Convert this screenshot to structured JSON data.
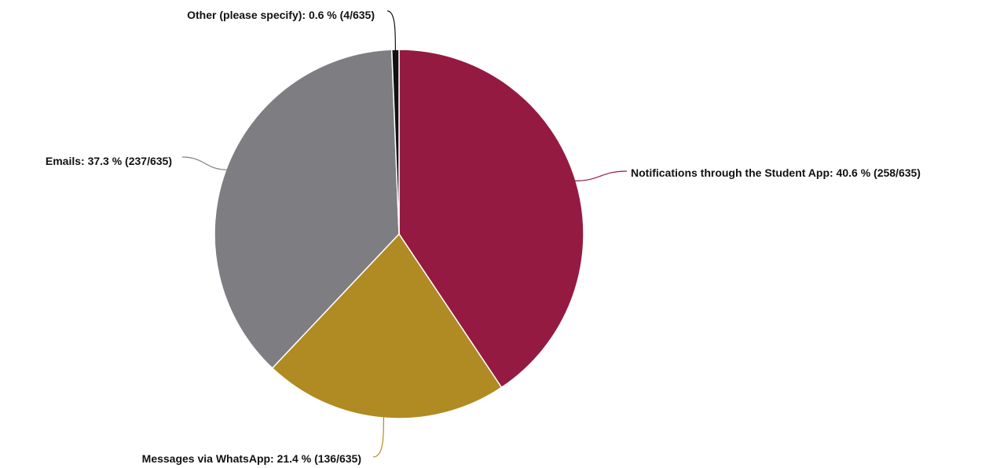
{
  "chart_data": {
    "type": "pie",
    "total": 635,
    "slices": [
      {
        "name": "Notifications through the Student App",
        "value": 258,
        "percent": 40.6,
        "label": "Notifications through the Student App: 40.6 % (258/635)",
        "color": "#941a41"
      },
      {
        "name": "Messages via WhatsApp",
        "value": 136,
        "percent": 21.4,
        "label": "Messages via WhatsApp: 21.4 % (136/635)",
        "color": "#b08a22"
      },
      {
        "name": "Emails",
        "value": 237,
        "percent": 37.3,
        "label": "Emails: 37.3 % (237/635)",
        "color": "#7e7d82"
      },
      {
        "name": "Other (please specify)",
        "value": 4,
        "percent": 0.6,
        "label": "Other (please specify): 0.6 % (4/635)",
        "color": "#111111"
      }
    ],
    "start": "top",
    "direction": "clockwise",
    "legend": "none"
  }
}
